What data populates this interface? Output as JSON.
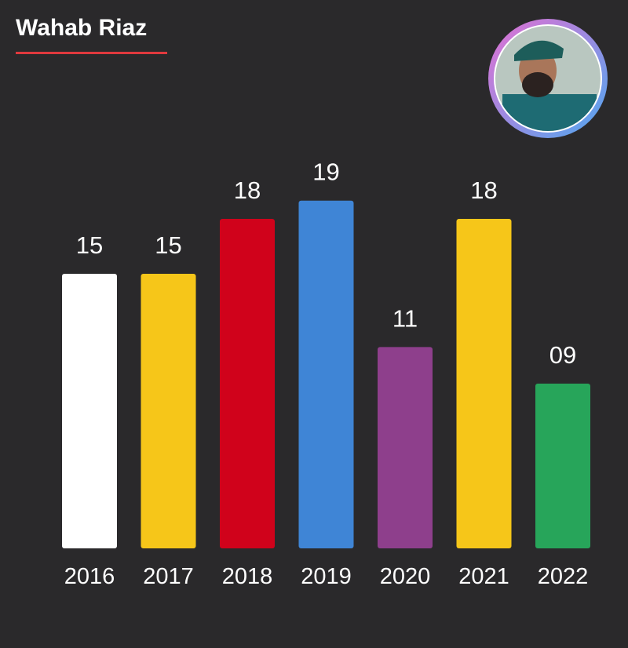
{
  "chart_data": {
    "type": "bar",
    "title": "Wahab Riaz",
    "categories": [
      "2016",
      "2017",
      "2018",
      "2019",
      "2020",
      "2021",
      "2022"
    ],
    "series": [
      {
        "name": null,
        "colors": [
          "#ffffff",
          "#f6c619",
          "#d0021b",
          "#3f85d6",
          "#8e3f8c",
          "#f6c619",
          "#27a55a"
        ],
        "values": [
          15,
          15,
          18,
          19,
          11,
          18,
          9
        ],
        "value_labels": [
          "15",
          "15",
          "18",
          "19",
          "11",
          "18",
          "09"
        ]
      }
    ]
  }
}
